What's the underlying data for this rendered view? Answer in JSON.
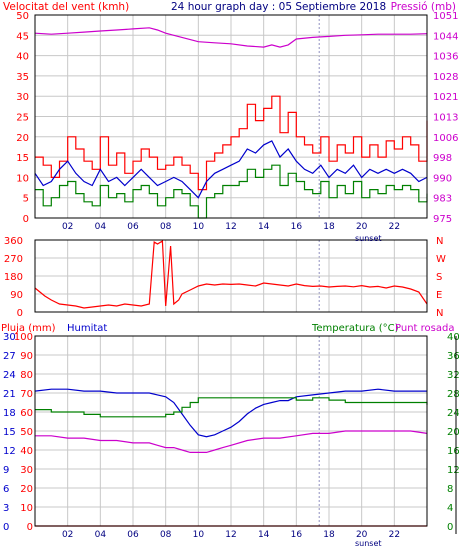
{
  "header": {
    "left_title": "Velocitat del vent (kmh)",
    "center_title": "24 hour graph day : 05 Septiembre 2018",
    "right_title": "Pressió (mb)"
  },
  "colors": {
    "wind_gust": "#ff0000",
    "wind_avg": "#0000cc",
    "wind_low": "#008000",
    "pressure": "#cc00cc",
    "direction": "#ff0000",
    "humidity": "#0000cc",
    "temperature": "#008000",
    "dewpoint": "#cc00cc",
    "rain": "#ff0000",
    "grid": "#c8c8c8"
  },
  "x_ticks": [
    "02",
    "04",
    "06",
    "08",
    "10",
    "12",
    "14",
    "16",
    "18",
    "20",
    "22"
  ],
  "sunset_label": "sunset",
  "chart_data": [
    {
      "id": "wind_pressure",
      "type": "line",
      "xlim": [
        0,
        24
      ],
      "y_left": {
        "ticks": [
          "0",
          "5",
          "10",
          "15",
          "20",
          "25",
          "30",
          "35",
          "40",
          "45",
          "50"
        ],
        "lim": [
          0,
          50
        ]
      },
      "y_right": {
        "ticks": [
          "975",
          "983",
          "990",
          "998",
          "1006",
          "1013",
          "1021",
          "1028",
          "1036",
          "1044",
          "1051"
        ],
        "lim": [
          975,
          1051
        ]
      },
      "series": [
        {
          "key": "gust",
          "color": "#ff0000",
          "axis": "left",
          "step": true,
          "x": [
            0,
            0.5,
            1,
            1.5,
            2,
            2.5,
            3,
            3.5,
            4,
            4.5,
            5,
            5.5,
            6,
            6.5,
            7,
            7.5,
            8,
            8.5,
            9,
            9.5,
            10,
            10.5,
            11,
            11.5,
            12,
            12.5,
            13,
            13.5,
            14,
            14.5,
            15,
            15.5,
            16,
            16.5,
            17,
            17.5,
            18,
            18.5,
            19,
            19.5,
            20,
            20.5,
            21,
            21.5,
            22,
            22.5,
            23,
            23.5,
            24
          ],
          "y": [
            15,
            13,
            10,
            14,
            20,
            17,
            14,
            12,
            20,
            13,
            16,
            11,
            14,
            17,
            15,
            12,
            13,
            15,
            13,
            11,
            7,
            14,
            16,
            18,
            20,
            22,
            28,
            24,
            27,
            30,
            21,
            26,
            20,
            18,
            16,
            20,
            14,
            18,
            16,
            20,
            15,
            18,
            15,
            19,
            17,
            20,
            18,
            14,
            24
          ]
        },
        {
          "key": "avg",
          "color": "#0000cc",
          "axis": "left",
          "step": false,
          "x": [
            0,
            0.5,
            1,
            1.5,
            2,
            2.5,
            3,
            3.5,
            4,
            4.5,
            5,
            5.5,
            6,
            6.5,
            7,
            7.5,
            8,
            8.5,
            9,
            9.5,
            10,
            10.5,
            11,
            11.5,
            12,
            12.5,
            13,
            13.5,
            14,
            14.5,
            15,
            15.5,
            16,
            16.5,
            17,
            17.5,
            18,
            18.5,
            19,
            19.5,
            20,
            20.5,
            21,
            21.5,
            22,
            22.5,
            23,
            23.5,
            24
          ],
          "y": [
            11,
            8,
            9,
            12,
            14,
            11,
            9,
            8,
            12,
            9,
            10,
            8,
            10,
            12,
            10,
            8,
            9,
            10,
            9,
            7,
            5,
            9,
            11,
            12,
            13,
            14,
            17,
            16,
            18,
            19,
            15,
            17,
            14,
            12,
            11,
            13,
            10,
            12,
            11,
            13,
            10,
            12,
            11,
            12,
            11,
            12,
            11,
            9,
            10
          ]
        },
        {
          "key": "low",
          "color": "#008000",
          "axis": "left",
          "step": true,
          "x": [
            0,
            0.5,
            1,
            1.5,
            2,
            2.5,
            3,
            3.5,
            4,
            4.5,
            5,
            5.5,
            6,
            6.5,
            7,
            7.5,
            8,
            8.5,
            9,
            9.5,
            10,
            10.5,
            11,
            11.5,
            12,
            12.5,
            13,
            13.5,
            14,
            14.5,
            15,
            15.5,
            16,
            16.5,
            17,
            17.5,
            18,
            18.5,
            19,
            19.5,
            20,
            20.5,
            21,
            21.5,
            22,
            22.5,
            23,
            23.5,
            24
          ],
          "y": [
            7,
            3,
            5,
            8,
            9,
            6,
            4,
            3,
            8,
            5,
            6,
            4,
            7,
            8,
            6,
            3,
            5,
            7,
            6,
            3,
            0,
            5,
            6,
            8,
            8,
            9,
            12,
            10,
            12,
            13,
            8,
            11,
            9,
            7,
            6,
            9,
            5,
            8,
            6,
            9,
            5,
            7,
            6,
            8,
            7,
            8,
            7,
            4,
            6
          ]
        },
        {
          "key": "pressure",
          "color": "#cc00cc",
          "axis": "right",
          "step": false,
          "x": [
            0,
            1,
            2,
            3,
            4,
            5,
            6,
            7,
            7.5,
            8,
            8.5,
            9,
            9.5,
            10,
            11,
            12,
            13,
            14,
            14.5,
            15,
            15.5,
            16,
            17,
            18,
            19,
            20,
            21,
            22,
            23,
            24
          ],
          "y": [
            1044.2,
            1043.8,
            1044.2,
            1044.6,
            1045,
            1045.4,
            1045.8,
            1046.2,
            1045.4,
            1044.2,
            1043.4,
            1042.6,
            1041.8,
            1041,
            1040.6,
            1040.2,
            1039.4,
            1039,
            1039.8,
            1039,
            1039.8,
            1042,
            1042.6,
            1043,
            1043.4,
            1043.6,
            1043.8,
            1043.8,
            1043.8,
            1044
          ]
        }
      ]
    },
    {
      "id": "wind_direction",
      "type": "line",
      "xlim": [
        0,
        24
      ],
      "y_left": {
        "ticks": [
          "360",
          "270",
          "180",
          "90",
          "0"
        ],
        "lim": [
          0,
          360
        ]
      },
      "y_right": {
        "ticks": [
          "N",
          "W",
          "S",
          "E",
          "N"
        ]
      },
      "series": [
        {
          "key": "direction",
          "color": "#ff0000",
          "axis": "left",
          "step": false,
          "x": [
            0,
            0.3,
            0.6,
            1,
            1.5,
            2,
            2.5,
            3,
            3.5,
            4,
            4.5,
            5,
            5.5,
            6,
            6.5,
            7,
            7.3,
            7.5,
            7.8,
            8,
            8.3,
            8.5,
            8.8,
            9,
            9.5,
            10,
            10.5,
            11,
            11.5,
            12,
            12.5,
            13,
            13.5,
            14,
            14.5,
            15,
            15.5,
            16,
            16.5,
            17,
            17.5,
            18,
            18.5,
            19,
            19.5,
            20,
            20.5,
            21,
            21.5,
            22,
            22.5,
            23,
            23.5,
            24
          ],
          "y": [
            120,
            100,
            80,
            60,
            40,
            35,
            30,
            20,
            25,
            30,
            35,
            30,
            40,
            35,
            30,
            40,
            350,
            340,
            355,
            30,
            330,
            40,
            60,
            90,
            110,
            130,
            140,
            135,
            140,
            138,
            140,
            135,
            130,
            145,
            140,
            135,
            130,
            140,
            132,
            128,
            130,
            125,
            128,
            130,
            126,
            132,
            125,
            128,
            120,
            130,
            125,
            115,
            100,
            40
          ]
        }
      ]
    },
    {
      "id": "temp_hum_rain",
      "type": "line",
      "xlim": [
        0,
        24
      ],
      "y_left_outer": {
        "label": "Pluja (mm)",
        "ticks": [
          "30",
          "27",
          "24",
          "21",
          "18",
          "15",
          "12",
          "9",
          "6",
          "3",
          "0"
        ],
        "lim": [
          0,
          30
        ]
      },
      "y_left_inner": {
        "label": "Humitat",
        "ticks": [
          "100",
          "90",
          "80",
          "70",
          "60",
          "50",
          "40",
          "30",
          "20",
          "10",
          "0"
        ],
        "lim": [
          0,
          100
        ]
      },
      "y_right_outer": {
        "label": "Temperatura (°C)",
        "ticks": [
          "40",
          "36",
          "32",
          "28",
          "24",
          "20",
          "16",
          "12",
          "8",
          "4",
          "0"
        ],
        "lim": [
          0,
          40
        ]
      },
      "y_right_inner": {
        "label": "Punt rosada"
      },
      "series": [
        {
          "key": "humidity",
          "color": "#0000cc",
          "axis": "humidity",
          "step": false,
          "x": [
            0,
            1,
            2,
            3,
            4,
            5,
            6,
            7,
            7.5,
            8,
            8.5,
            9,
            9.5,
            10,
            10.5,
            11,
            11.5,
            12,
            12.5,
            13,
            13.5,
            14,
            14.5,
            15,
            15.5,
            16,
            17,
            18,
            19,
            20,
            21,
            22,
            23,
            24
          ],
          "y": [
            71,
            72,
            72,
            71,
            71,
            70,
            70,
            70,
            69,
            68,
            65,
            59,
            53,
            48,
            47,
            48,
            50,
            52,
            55,
            59,
            62,
            64,
            65,
            66,
            66,
            68,
            69,
            70,
            71,
            71,
            72,
            71,
            71,
            71
          ]
        },
        {
          "key": "temperature",
          "color": "#008000",
          "axis": "temperature",
          "step": true,
          "x": [
            0,
            1,
            2,
            3,
            4,
            5,
            6,
            7,
            8,
            8.5,
            9,
            9.5,
            10,
            10.5,
            11,
            12,
            13,
            14,
            15,
            16,
            17,
            18,
            19,
            20,
            21,
            22,
            23,
            24
          ],
          "y": [
            24.5,
            24,
            24,
            23.5,
            23,
            23,
            23,
            23,
            23.5,
            24,
            25,
            26,
            27,
            27,
            27,
            27,
            27,
            27,
            27,
            26.5,
            27,
            26.5,
            26,
            26,
            26,
            26,
            26,
            25.5
          ]
        },
        {
          "key": "dewpoint",
          "color": "#cc00cc",
          "axis": "temperature",
          "step": false,
          "x": [
            0,
            1,
            2,
            3,
            4,
            5,
            6,
            7,
            7.5,
            8,
            8.5,
            9,
            9.5,
            10,
            10.5,
            11,
            11.5,
            12,
            13,
            14,
            15,
            16,
            17,
            18,
            19,
            20,
            21,
            22,
            23,
            24
          ],
          "y": [
            19,
            19,
            18.5,
            18.5,
            18,
            18,
            17.5,
            17.5,
            17,
            16.5,
            16.5,
            16,
            15.5,
            15.5,
            15.5,
            16,
            16.5,
            17,
            18,
            18.5,
            18.5,
            19,
            19.5,
            19.5,
            20,
            20,
            20,
            20,
            20,
            19.5
          ]
        },
        {
          "key": "rain",
          "color": "#ff0000",
          "axis": "rain",
          "step": false,
          "x": [
            0,
            24
          ],
          "y": [
            0,
            0
          ]
        }
      ]
    }
  ]
}
